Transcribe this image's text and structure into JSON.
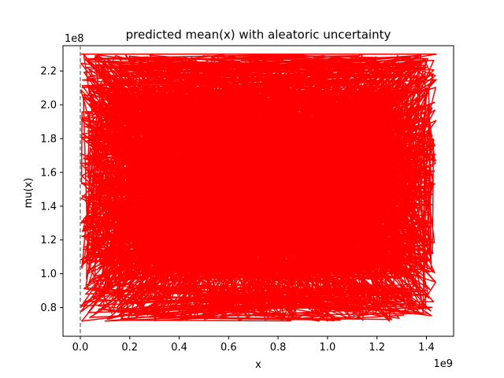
{
  "chart_data": {
    "type": "line",
    "title": "predicted mean(x) with aleatoric uncertainty",
    "xlabel": "x",
    "ylabel": "mu(x)",
    "x_offset_label": "1e9",
    "y_offset_label": "1e8",
    "xlim": [
      -0.07,
      1.51
    ],
    "ylim": [
      0.63,
      2.35
    ],
    "x_ticks": [
      0.0,
      0.2,
      0.4,
      0.6,
      0.8,
      1.0,
      1.2,
      1.4
    ],
    "x_tick_labels": [
      "0.0",
      "0.2",
      "0.4",
      "0.6",
      "0.8",
      "1.0",
      "1.2",
      "1.4"
    ],
    "y_ticks": [
      0.8,
      1.0,
      1.2,
      1.4,
      1.6,
      1.8,
      2.0,
      2.2
    ],
    "y_tick_labels": [
      "0.8",
      "1.0",
      "1.2",
      "1.4",
      "1.6",
      "1.8",
      "2.0",
      "2.2"
    ],
    "grid": false,
    "vline_x": 0.0,
    "series": [
      {
        "color": "#ff0000",
        "x_range": [
          0.0,
          1.44
        ],
        "y_range": [
          0.72,
          2.3
        ],
        "values": [
          [
            0.0,
            2.3
          ],
          [
            1.44,
            2.3
          ],
          [
            0.02,
            1.95
          ],
          [
            1.42,
            1.75
          ],
          [
            0.05,
            1.1
          ],
          [
            1.4,
            0.9
          ],
          [
            0.1,
            0.72
          ],
          [
            1.38,
            0.8
          ],
          [
            0.3,
            2.05
          ],
          [
            1.3,
            1.2
          ],
          [
            0.5,
            0.75
          ],
          [
            1.2,
            2.28
          ],
          [
            0.2,
            1.5
          ],
          [
            1.0,
            0.72
          ],
          [
            0.8,
            2.28
          ],
          [
            0.4,
            0.9
          ],
          [
            1.1,
            1.9
          ],
          [
            0.6,
            0.8
          ],
          [
            1.44,
            2.15
          ],
          [
            0.0,
            0.8
          ],
          [
            0.7,
            2.28
          ],
          [
            0.9,
            1.05
          ],
          [
            0.35,
            2.28
          ],
          [
            1.25,
            0.72
          ],
          [
            0.55,
            1.7
          ],
          [
            1.05,
            2.28
          ],
          [
            0.15,
            0.95
          ],
          [
            1.35,
            1.3
          ],
          [
            0.45,
            2.28
          ],
          [
            0.75,
            0.72
          ]
        ]
      }
    ]
  }
}
